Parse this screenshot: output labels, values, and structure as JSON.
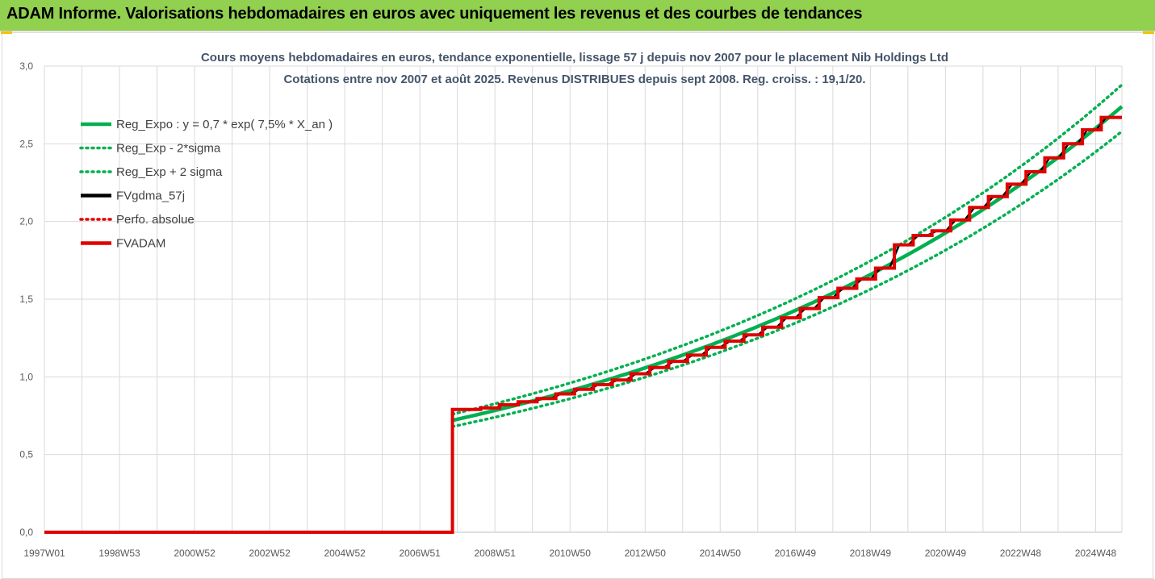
{
  "banner": {
    "title": "ADAM Informe. Valorisations hebdomadaires en euros avec uniquement les revenus et des courbes de tendances"
  },
  "colors": {
    "banner_bg": "#92d050",
    "green": "#00b050",
    "black": "#000000",
    "red": "#e00000",
    "title_color": "#44546a",
    "grid": "#d9d9d9"
  },
  "chart_data": {
    "type": "line",
    "title": "Cours moyens hebdomadaires en euros, tendance exponentielle, lissage 57 j depuis nov 2007 pour le placement Nib Holdings Ltd",
    "subtitle": "Cotations entre nov 2007 et août 2025. Revenus DISTRIBUES depuis sept 2008. Reg. croiss. : 19,1/20.",
    "xlabel": "",
    "ylabel": "",
    "x_ticks": [
      "1997W01",
      "1998W53",
      "2000W52",
      "2002W52",
      "2004W52",
      "2006W51",
      "2008W51",
      "2010W50",
      "2012W50",
      "2014W50",
      "2016W49",
      "2018W49",
      "2020W49",
      "2022W48",
      "2024W48"
    ],
    "x_range_years": [
      1997.0,
      2025.65
    ],
    "y_ticks": [
      "0,0",
      "0,5",
      "1,0",
      "1,5",
      "2,0",
      "2,5",
      "3,0"
    ],
    "ylim": [
      0,
      3
    ],
    "grid": true,
    "legend_position": "top-left",
    "legend": [
      {
        "label": "Reg_Expo : y = 0,7 * exp( 7,5% *  X_an )",
        "color": "#00b050",
        "style": "solid"
      },
      {
        "label": "Reg_Exp - 2*sigma",
        "color": "#00b050",
        "style": "dotted"
      },
      {
        "label": "Reg_Exp + 2 sigma",
        "color": "#00b050",
        "style": "dotted"
      },
      {
        "label": "FVgdma_57j",
        "color": "#000000",
        "style": "solid"
      },
      {
        "label": "Perfo. absolue",
        "color": "#e00000",
        "style": "dotted"
      },
      {
        "label": "FVADAM",
        "color": "#e00000",
        "style": "solid"
      }
    ],
    "regression": {
      "start_year": 2007.85,
      "end_year": 2025.65,
      "start_value": 0.72,
      "end_value": 2.74,
      "lower_start": 0.68,
      "lower_end": 2.58,
      "upper_start": 0.76,
      "upper_end": 2.88
    },
    "fvadam": {
      "zero_until_year": 2007.85,
      "initial_value": 0.79,
      "steps": [
        {
          "year": 2008.6,
          "value": 0.8
        },
        {
          "year": 2009.1,
          "value": 0.82
        },
        {
          "year": 2009.6,
          "value": 0.84
        },
        {
          "year": 2010.1,
          "value": 0.86
        },
        {
          "year": 2010.6,
          "value": 0.89
        },
        {
          "year": 2011.1,
          "value": 0.92
        },
        {
          "year": 2011.6,
          "value": 0.95
        },
        {
          "year": 2012.1,
          "value": 0.98
        },
        {
          "year": 2012.6,
          "value": 1.02
        },
        {
          "year": 2013.1,
          "value": 1.06
        },
        {
          "year": 2013.6,
          "value": 1.1
        },
        {
          "year": 2014.1,
          "value": 1.14
        },
        {
          "year": 2014.6,
          "value": 1.19
        },
        {
          "year": 2015.1,
          "value": 1.23
        },
        {
          "year": 2015.6,
          "value": 1.27
        },
        {
          "year": 2016.1,
          "value": 1.32
        },
        {
          "year": 2016.6,
          "value": 1.38
        },
        {
          "year": 2017.1,
          "value": 1.44
        },
        {
          "year": 2017.6,
          "value": 1.51
        },
        {
          "year": 2018.1,
          "value": 1.57
        },
        {
          "year": 2018.6,
          "value": 1.63
        },
        {
          "year": 2019.1,
          "value": 1.7
        },
        {
          "year": 2019.6,
          "value": 1.85
        },
        {
          "year": 2020.1,
          "value": 1.91
        },
        {
          "year": 2020.6,
          "value": 1.94
        },
        {
          "year": 2021.1,
          "value": 2.01
        },
        {
          "year": 2021.6,
          "value": 2.09
        },
        {
          "year": 2022.1,
          "value": 2.16
        },
        {
          "year": 2022.6,
          "value": 2.24
        },
        {
          "year": 2023.1,
          "value": 2.32
        },
        {
          "year": 2023.6,
          "value": 2.41
        },
        {
          "year": 2024.1,
          "value": 2.5
        },
        {
          "year": 2024.6,
          "value": 2.59
        },
        {
          "year": 2025.1,
          "value": 2.67
        }
      ],
      "end_year": 2025.65
    }
  }
}
